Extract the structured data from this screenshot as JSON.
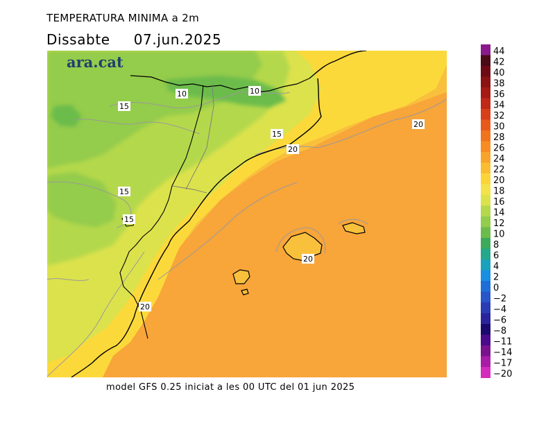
{
  "header": {
    "title": "TEMPERATURA MINIMA a 2m",
    "day": "Dissabte",
    "date": "07.jun.2025"
  },
  "brand": "ara.cat",
  "footer": "model GFS 0.25 iniciat a les 00 UTC del 01 jun 2025",
  "map": {
    "contour_labels": [
      {
        "text": "10",
        "value": 10
      },
      {
        "text": "10",
        "value": 10
      },
      {
        "text": "15",
        "value": 15
      },
      {
        "text": "15",
        "value": 15
      },
      {
        "text": "15",
        "value": 15
      },
      {
        "text": "15",
        "value": 15
      },
      {
        "text": "20",
        "value": 20
      },
      {
        "text": "20",
        "value": 20
      },
      {
        "text": "20",
        "value": 20
      },
      {
        "text": "20",
        "value": 20
      }
    ]
  },
  "legend": {
    "labels": [
      "44",
      "42",
      "40",
      "38",
      "36",
      "34",
      "32",
      "30",
      "28",
      "26",
      "24",
      "22",
      "20",
      "18",
      "16",
      "14",
      "12",
      "10",
      "8",
      "6",
      "4",
      "2",
      "0",
      "−2",
      "−4",
      "−6",
      "−8",
      "−11",
      "−14",
      "−17",
      "−20"
    ],
    "colors": [
      "#8a1a8c",
      "#4a0a16",
      "#6e0a14",
      "#8a1212",
      "#a51a14",
      "#c02818",
      "#d8401a",
      "#e85a1c",
      "#f0741e",
      "#f68c22",
      "#f8a42a",
      "#fabc30",
      "#fcd438",
      "#f4e24a",
      "#dce24c",
      "#b4d84c",
      "#94cc4c",
      "#6cbc4c",
      "#3caa5a",
      "#24a88c",
      "#1aa2bc",
      "#1a8ee0",
      "#1e6ed8",
      "#2856c8",
      "#2a3cb4",
      "#2a249c",
      "#1a0a6e",
      "#4a0a8c",
      "#7a128e",
      "#a81ca8",
      "#d42cbc"
    ]
  }
}
